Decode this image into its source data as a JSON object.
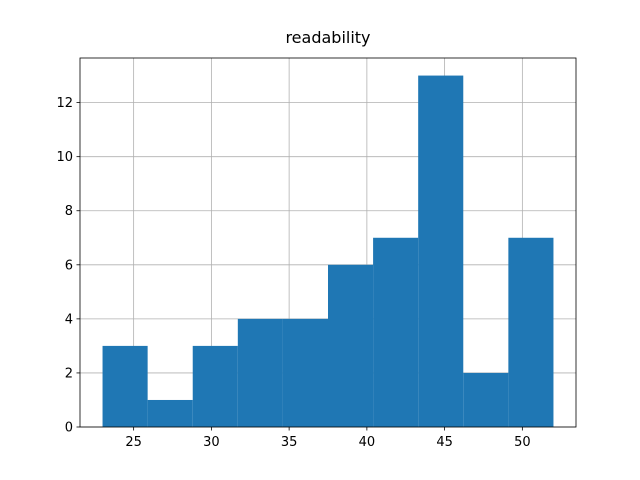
{
  "chart_data": {
    "type": "histogram",
    "title": "readability",
    "bins": [
      23,
      25.9,
      28.8,
      31.7,
      34.6,
      37.5,
      40.4,
      43.3,
      46.2,
      49.1,
      52
    ],
    "values": [
      3,
      1,
      3,
      4,
      4,
      6,
      7,
      13,
      2,
      7
    ],
    "color": "#1f77b4",
    "xlim": [
      21.55,
      53.45
    ],
    "xticks": [
      25,
      30,
      35,
      40,
      45,
      50
    ],
    "ylim": [
      0,
      13.65
    ],
    "yticks": [
      0,
      2,
      4,
      6,
      8,
      10,
      12
    ],
    "grid": true
  }
}
